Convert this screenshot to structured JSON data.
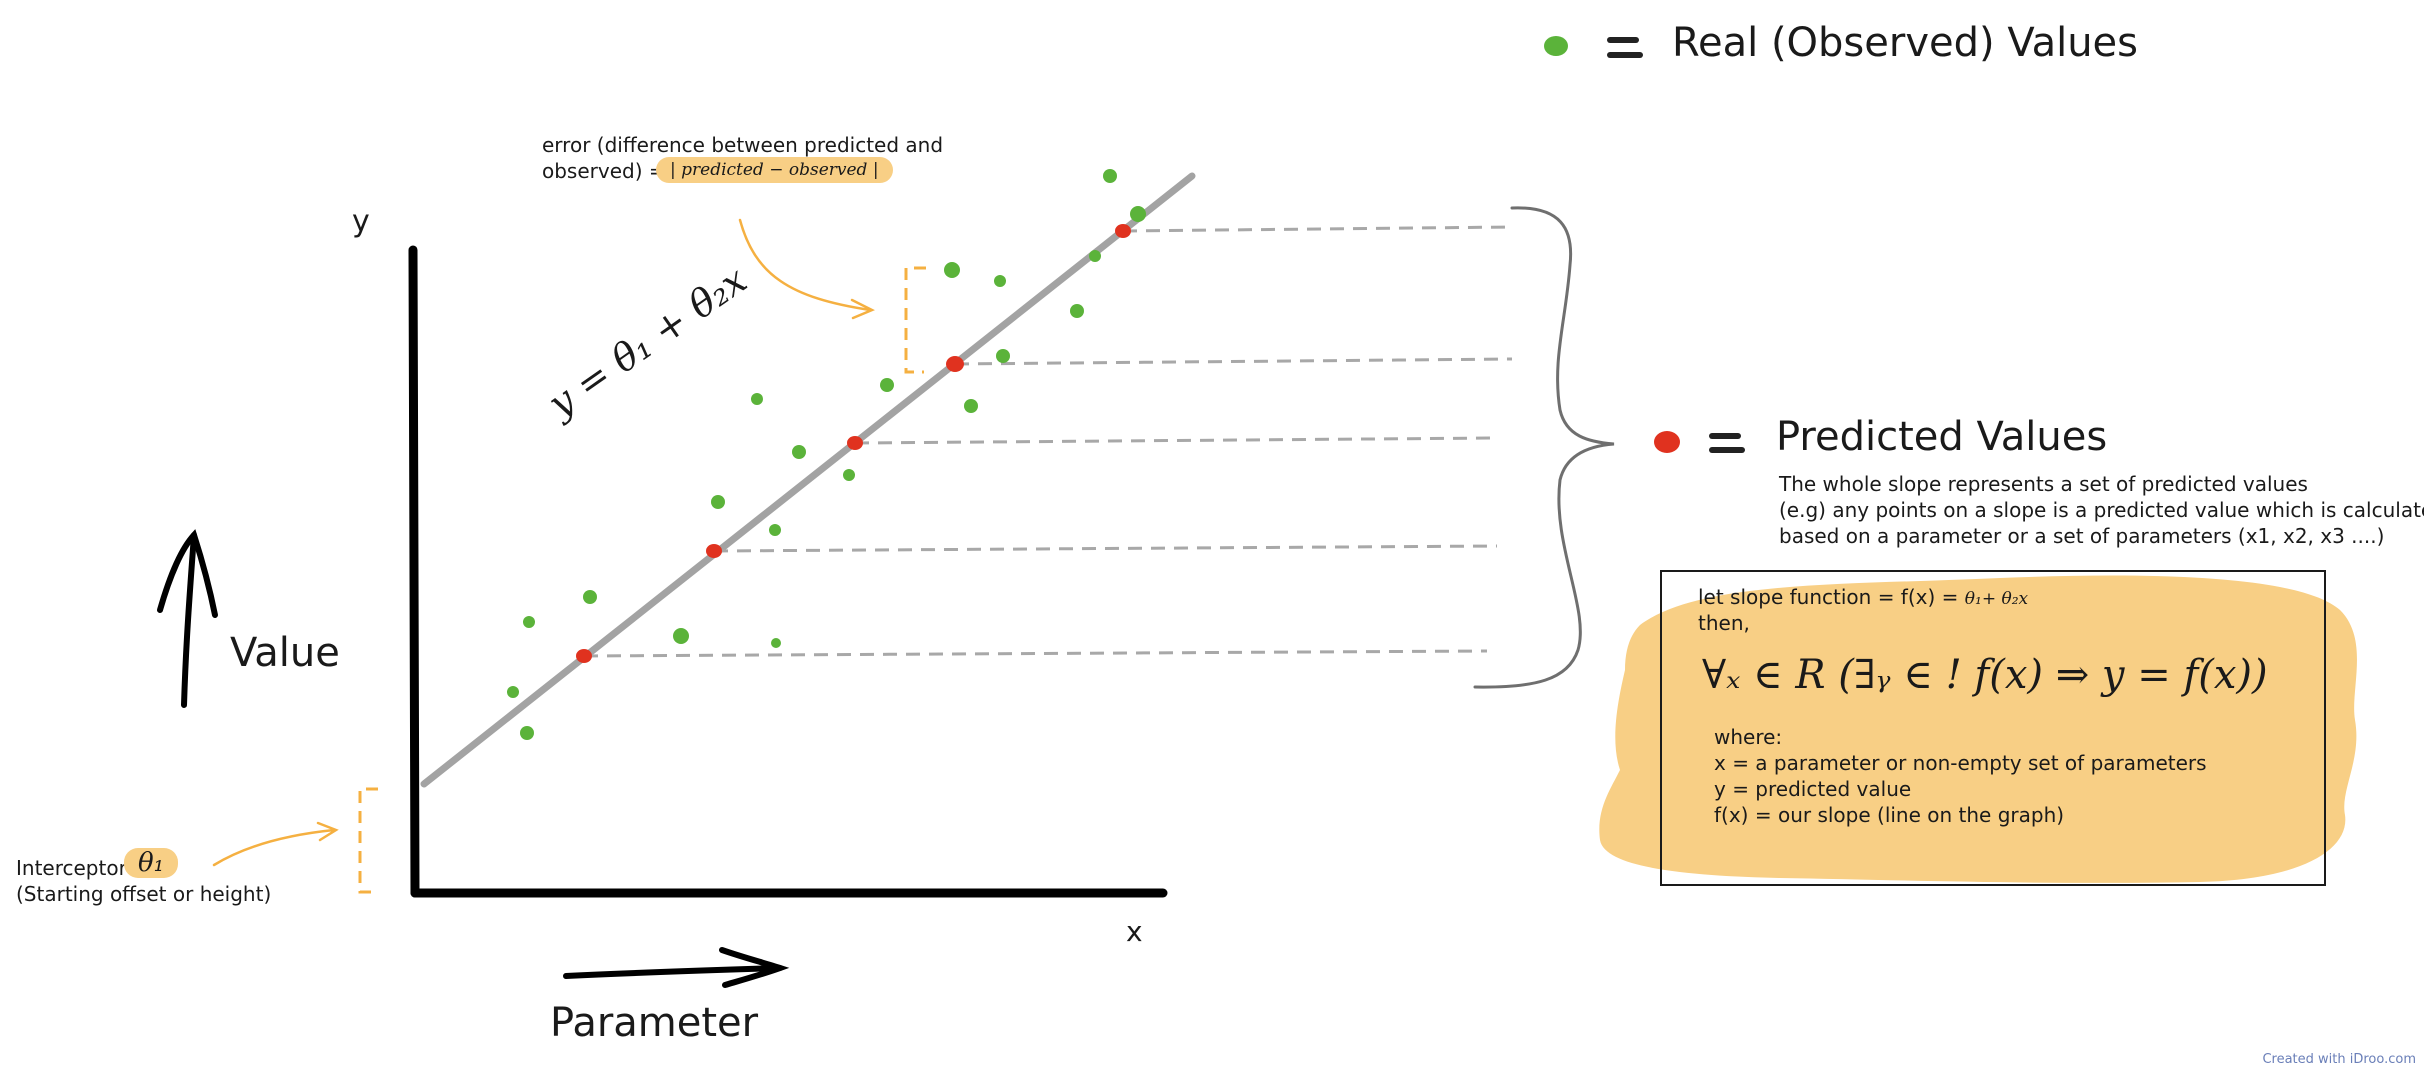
{
  "axes": {
    "y_label": "y",
    "x_label": "x"
  },
  "labels": {
    "value": "Value",
    "parameter": "Parameter",
    "slope_equation": "y = θ₁ + θ₂x",
    "error_line1": "error (difference between predicted and",
    "error_line2": "observed) =",
    "error_formula": "| predicted − observed |",
    "interceptor_word": "Interceptor",
    "interceptor_symbol": "θ₁",
    "interceptor_desc": "(Starting offset or height)"
  },
  "legend": {
    "real": "Real (Observed) Values",
    "predicted": "Predicted Values",
    "real_color": "#5bb33a",
    "predicted_color": "#e0321f",
    "predicted_desc": [
      "The whole slope represents a set of predicted values",
      "(e.g) any points on a slope is a predicted value which is calculated",
      "based on a parameter or a set of parameters (x1, x2, x3 ....)"
    ]
  },
  "box": {
    "line1": "let slope function = f(x) =",
    "line1_formula": "θ₁+ θ₂x",
    "line2": "then,",
    "forall": "∀ₓ ∈ R (∃ᵧ ∈ ! f(x)  ⇒  y = f(x))",
    "where": "where:",
    "w1": "x = a parameter or non-empty set of parameters",
    "w2": "y = predicted value",
    "w3": "f(x) = our slope (line on the graph)",
    "highlight_color": "#f8cf85"
  },
  "credit": "Created with iDroo.com"
}
